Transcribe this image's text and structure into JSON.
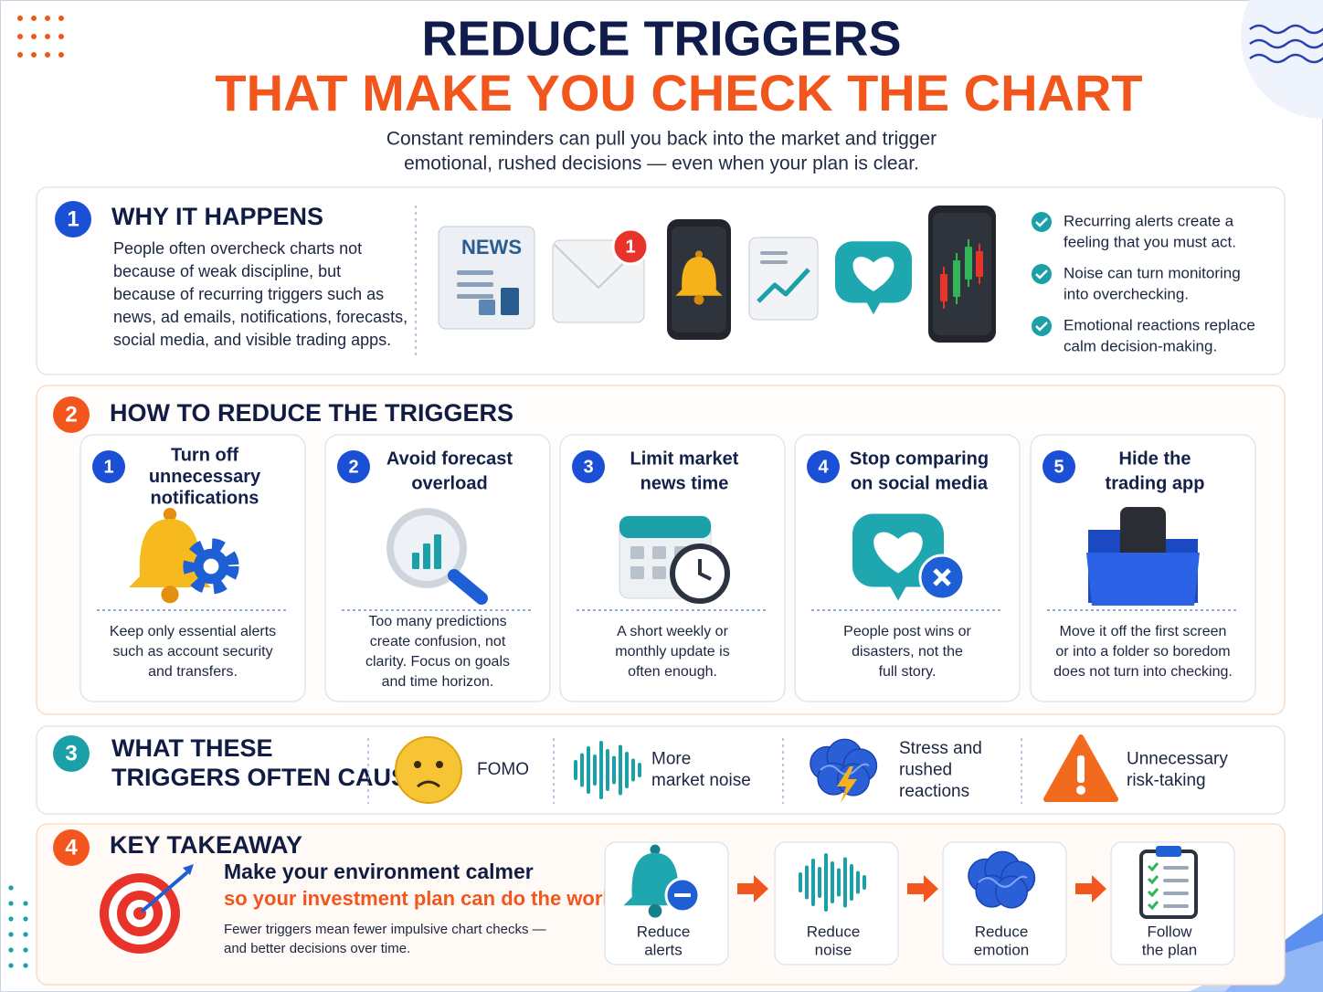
{
  "header": {
    "title_line1": "REDUCE TRIGGERS",
    "title_line2": "THAT MAKE YOU CHECK THE CHART",
    "subtitle": [
      "Constant reminders can pull you back into the market and trigger",
      "emotional, rushed decisions — even when your plan is clear."
    ]
  },
  "why": {
    "number": "1",
    "title": "WHY IT HAPPENS",
    "body": [
      "People often overcheck charts not",
      "because of weak discipline, but",
      "because of recurring triggers such as",
      "news, ad emails, notifications, forecasts,",
      "social media, and visible trading apps."
    ],
    "icon_news": "NEWS",
    "icon_badge": "1",
    "checklist": [
      [
        "Recurring alerts create a",
        "feeling that you must act."
      ],
      [
        "Noise can turn monitoring",
        "into overchecking."
      ],
      [
        "Emotional reactions replace",
        "calm decision-making."
      ]
    ]
  },
  "how": {
    "number": "2",
    "title": "HOW TO REDUCE THE TRIGGERS",
    "cards": [
      {
        "number": "1",
        "title": [
          "Turn off",
          "unnecessary",
          "notifications"
        ],
        "text": [
          "Keep only essential alerts",
          "such as account security",
          "and transfers."
        ]
      },
      {
        "number": "2",
        "title": [
          "Avoid forecast",
          "overload"
        ],
        "text": [
          "Too many predictions",
          "create confusion, not",
          "clarity. Focus on goals",
          "and time horizon."
        ]
      },
      {
        "number": "3",
        "title": [
          "Limit market",
          "news time"
        ],
        "text": [
          "A short weekly or",
          "monthly update is",
          "often enough."
        ]
      },
      {
        "number": "4",
        "title": [
          "Stop comparing",
          "on social media"
        ],
        "text": [
          "People post wins or",
          "disasters, not the",
          "full story."
        ]
      },
      {
        "number": "5",
        "title": [
          "Hide the",
          "trading app"
        ],
        "text": [
          "Move it off the first screen",
          "or into a folder so boredom",
          "does not turn into checking."
        ]
      }
    ]
  },
  "effects": {
    "number": "3",
    "title": [
      "WHAT THESE",
      "TRIGGERS OFTEN CAUSE"
    ],
    "items": [
      [
        "FOMO"
      ],
      [
        "More",
        "market noise"
      ],
      [
        "Stress and",
        "rushed",
        "reactions"
      ],
      [
        "Unnecessary",
        "risk-taking"
      ]
    ]
  },
  "takeaway": {
    "number": "4",
    "title": "KEY TAKEAWAY",
    "headline": "Make your environment calmer",
    "highlight": "so your investment plan can do the work.",
    "note": [
      "Fewer triggers mean fewer impulsive chart checks —",
      "and better decisions over time."
    ],
    "steps": [
      [
        "Reduce",
        "alerts"
      ],
      [
        "Reduce",
        "noise"
      ],
      [
        "Reduce",
        "emotion"
      ],
      [
        "Follow",
        "the plan"
      ]
    ]
  }
}
